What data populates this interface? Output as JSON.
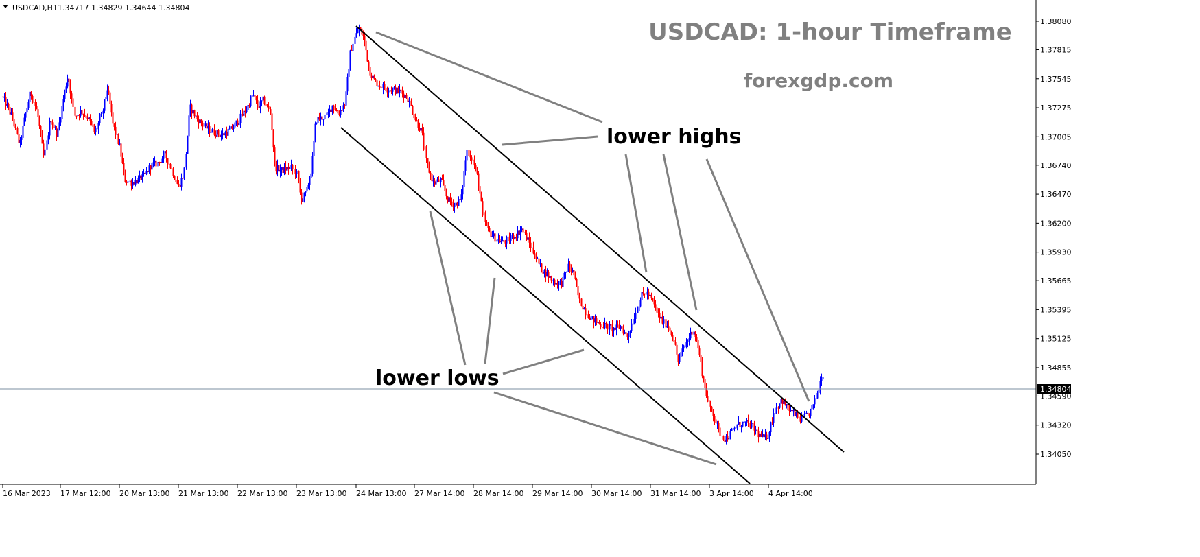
{
  "header": {
    "symbol": "USDCAD,H1",
    "ohlc": "1.34717 1.34829 1.34644 1.34804"
  },
  "colors": {
    "bull": "#0000ff",
    "bear": "#ff0000",
    "channel": "#000000",
    "pointer": "#808080",
    "price_line": "#7b8fa0",
    "title": "#808080"
  },
  "chart_data": {
    "type": "candlestick",
    "title": "USDCAD: 1-hour Timeframe",
    "subtitle": "forexgdp.com",
    "ylim": [
      1.3396,
      1.3817
    ],
    "y_ticks": [
      "1.38080",
      "1.37815",
      "1.37545",
      "1.37275",
      "1.37005",
      "1.36740",
      "1.36470",
      "1.36200",
      "1.35930",
      "1.35665",
      "1.35395",
      "1.35125",
      "1.34855",
      "1.34590",
      "1.34320",
      "1.34050"
    ],
    "x_ticks": [
      "16 Mar 2023",
      "17 Mar 12:00",
      "20 Mar 13:00",
      "21 Mar 13:00",
      "22 Mar 13:00",
      "23 Mar 13:00",
      "24 Mar 13:00",
      "27 Mar 14:00",
      "28 Mar 14:00",
      "29 Mar 14:00",
      "30 Mar 14:00",
      "31 Mar 14:00",
      "3 Apr 14:00",
      "4 Apr 14:00"
    ],
    "current_price": "1.34804",
    "grid": false,
    "annotations": [
      "lower highs",
      "lower lows"
    ],
    "price_path": [
      [
        0,
        1.3742
      ],
      [
        10,
        1.3732
      ],
      [
        20,
        1.3718
      ],
      [
        30,
        1.3692
      ],
      [
        38,
        1.372
      ],
      [
        46,
        1.3742
      ],
      [
        56,
        1.3724
      ],
      [
        66,
        1.368
      ],
      [
        75,
        1.3718
      ],
      [
        85,
        1.3702
      ],
      [
        94,
        1.3735
      ],
      [
        101,
        1.3758
      ],
      [
        110,
        1.372
      ],
      [
        120,
        1.3724
      ],
      [
        130,
        1.3718
      ],
      [
        140,
        1.3704
      ],
      [
        150,
        1.372
      ],
      [
        158,
        1.3746
      ],
      [
        166,
        1.3712
      ],
      [
        176,
        1.3692
      ],
      [
        184,
        1.366
      ],
      [
        193,
        1.3658
      ],
      [
        202,
        1.366
      ],
      [
        212,
        1.3664
      ],
      [
        222,
        1.3674
      ],
      [
        232,
        1.3676
      ],
      [
        242,
        1.3684
      ],
      [
        252,
        1.367
      ],
      [
        262,
        1.3654
      ],
      [
        270,
        1.3666
      ],
      [
        278,
        1.3728
      ],
      [
        288,
        1.3718
      ],
      [
        300,
        1.371
      ],
      [
        312,
        1.3705
      ],
      [
        325,
        1.3702
      ],
      [
        338,
        1.3707
      ],
      [
        350,
        1.3716
      ],
      [
        362,
        1.3728
      ],
      [
        370,
        1.374
      ],
      [
        378,
        1.3728
      ],
      [
        386,
        1.3735
      ],
      [
        396,
        1.3722
      ],
      [
        402,
        1.3672
      ],
      [
        412,
        1.3669
      ],
      [
        425,
        1.3672
      ],
      [
        434,
        1.3668
      ],
      [
        440,
        1.3642
      ],
      [
        448,
        1.3648
      ],
      [
        456,
        1.3672
      ],
      [
        462,
        1.3716
      ],
      [
        470,
        1.3718
      ],
      [
        478,
        1.372
      ],
      [
        486,
        1.373
      ],
      [
        495,
        1.3722
      ],
      [
        505,
        1.3732
      ],
      [
        512,
        1.3777
      ],
      [
        518,
        1.3792
      ],
      [
        525,
        1.3802
      ],
      [
        532,
        1.3792
      ],
      [
        540,
        1.3762
      ],
      [
        548,
        1.3752
      ],
      [
        556,
        1.3748
      ],
      [
        566,
        1.3745
      ],
      [
        576,
        1.3744
      ],
      [
        586,
        1.3742
      ],
      [
        596,
        1.3737
      ],
      [
        606,
        1.3718
      ],
      [
        616,
        1.3705
      ],
      [
        624,
        1.3674
      ],
      [
        634,
        1.3657
      ],
      [
        644,
        1.366
      ],
      [
        654,
        1.3642
      ],
      [
        664,
        1.3637
      ],
      [
        674,
        1.3642
      ],
      [
        682,
        1.3688
      ],
      [
        690,
        1.368
      ],
      [
        698,
        1.3662
      ],
      [
        705,
        1.3628
      ],
      [
        714,
        1.3612
      ],
      [
        724,
        1.3606
      ],
      [
        734,
        1.3602
      ],
      [
        744,
        1.3605
      ],
      [
        754,
        1.3609
      ],
      [
        762,
        1.3615
      ],
      [
        770,
        1.3605
      ],
      [
        780,
        1.3592
      ],
      [
        790,
        1.3578
      ],
      [
        800,
        1.3572
      ],
      [
        810,
        1.3565
      ],
      [
        820,
        1.3564
      ],
      [
        830,
        1.358
      ],
      [
        838,
        1.3573
      ],
      [
        846,
        1.3548
      ],
      [
        856,
        1.3537
      ],
      [
        866,
        1.353
      ],
      [
        876,
        1.3526
      ],
      [
        886,
        1.3524
      ],
      [
        896,
        1.3521
      ],
      [
        906,
        1.3524
      ],
      [
        916,
        1.3514
      ],
      [
        926,
        1.3532
      ],
      [
        936,
        1.3552
      ],
      [
        944,
        1.3556
      ],
      [
        952,
        1.3548
      ],
      [
        960,
        1.3536
      ],
      [
        968,
        1.3528
      ],
      [
        976,
        1.3524
      ],
      [
        984,
        1.3511
      ],
      [
        990,
        1.3491
      ],
      [
        998,
        1.3504
      ],
      [
        1006,
        1.3513
      ],
      [
        1012,
        1.3522
      ],
      [
        1018,
        1.3507
      ],
      [
        1026,
        1.3477
      ],
      [
        1034,
        1.3452
      ],
      [
        1042,
        1.3442
      ],
      [
        1050,
        1.3426
      ],
      [
        1058,
        1.3419
      ],
      [
        1066,
        1.3424
      ],
      [
        1076,
        1.3432
      ],
      [
        1086,
        1.3434
      ],
      [
        1096,
        1.3432
      ],
      [
        1106,
        1.3424
      ],
      [
        1116,
        1.3419
      ],
      [
        1122,
        1.3424
      ],
      [
        1130,
        1.3444
      ],
      [
        1140,
        1.3456
      ],
      [
        1150,
        1.3447
      ],
      [
        1160,
        1.3442
      ],
      [
        1170,
        1.3437
      ],
      [
        1180,
        1.3442
      ],
      [
        1188,
        1.3452
      ],
      [
        1194,
        1.3464
      ],
      [
        1200,
        1.348
      ]
    ]
  }
}
